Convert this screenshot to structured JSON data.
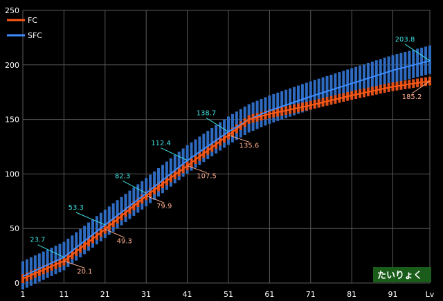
{
  "chart_data": {
    "type": "line",
    "x_ticks": [
      "1",
      "11",
      "21",
      "31",
      "41",
      "51",
      "61",
      "71",
      "81",
      "91"
    ],
    "x_unit_label": "Lv",
    "y_ticks": [
      "0",
      "50",
      "100",
      "150",
      "200",
      "250"
    ],
    "xlim": [
      1,
      100
    ],
    "ylim": [
      0,
      250
    ],
    "grid": true,
    "legend_position": "top-left",
    "badge": "たいりょく",
    "colors": {
      "background": "#000000",
      "grid": "#5a5a5a",
      "fc": "#ff5a14",
      "sfc": "#3c8cff",
      "fc_label": "#ffb090",
      "sfc_label": "#40e0e0"
    },
    "series": [
      {
        "name": "FC",
        "x": [
          1,
          11,
          21,
          31,
          41,
          51,
          56,
          61,
          71,
          81,
          91,
          100
        ],
        "y": [
          4,
          20.1,
          49.3,
          79.9,
          107.5,
          135.6,
          150,
          155,
          163,
          172,
          180,
          185.2
        ],
        "range_low_offset": 4,
        "range_high_offset": 4,
        "labels": [
          {
            "x": 11,
            "text": "20.1"
          },
          {
            "x": 21,
            "text": "49.3"
          },
          {
            "x": 31,
            "text": "79.9"
          },
          {
            "x": 41,
            "text": "107.5"
          },
          {
            "x": 51,
            "text": "135.6"
          },
          {
            "x": 100,
            "text": "185.2"
          }
        ]
      },
      {
        "name": "SFC",
        "x": [
          1,
          11,
          21,
          31,
          41,
          51,
          56,
          61,
          71,
          81,
          91,
          100
        ],
        "y": [
          6,
          23.7,
          53.3,
          82.3,
          112.4,
          138.7,
          150,
          158,
          171,
          183,
          195,
          203.8
        ],
        "range_low_offset": 12,
        "range_high_offset": 14,
        "labels": [
          {
            "x": 11,
            "text": "23.7"
          },
          {
            "x": 21,
            "text": "53.3"
          },
          {
            "x": 31,
            "text": "82.3"
          },
          {
            "x": 41,
            "text": "112.4"
          },
          {
            "x": 51,
            "text": "138.7"
          },
          {
            "x": 100,
            "text": "203.8"
          }
        ]
      }
    ]
  }
}
